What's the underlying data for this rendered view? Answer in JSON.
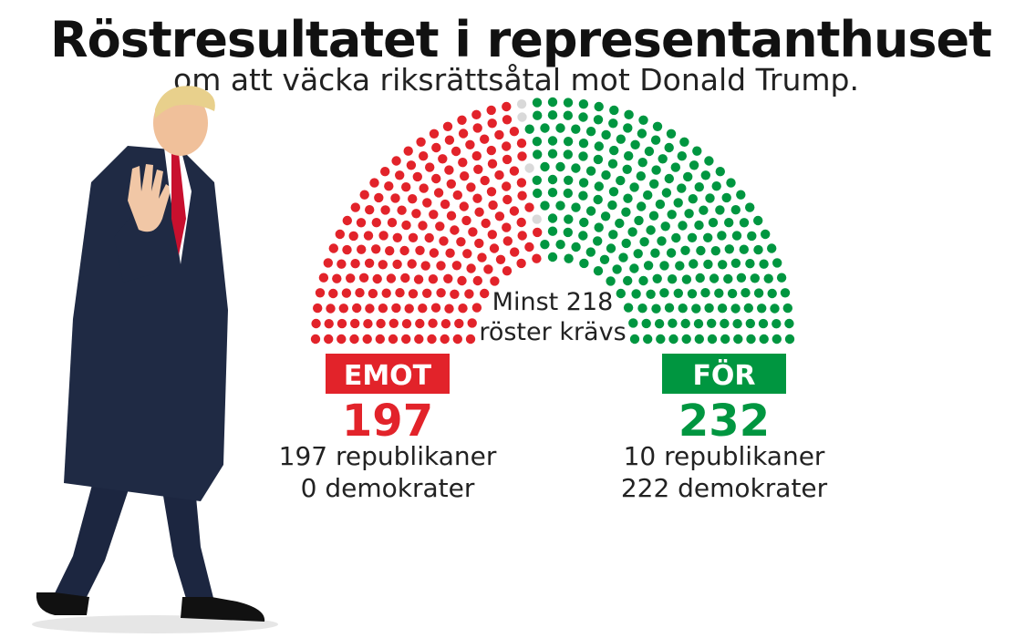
{
  "header": {
    "title": "Röstresultatet i representanthuset",
    "subtitle": "om att väcka riksrättsåtal mot Donald Trump."
  },
  "colors": {
    "against": "#e2232a",
    "for": "#009640",
    "absent": "#d9d9d9"
  },
  "photo": {
    "icon": "person-walking-figure"
  },
  "chart_data": {
    "type": "parliament",
    "title": "Röstresultatet i representanthuset",
    "subtitle": "om att väcka riksrättsåtal mot Donald Trump.",
    "total_seats": 433,
    "threshold_label": [
      "Minst 218",
      "röster krävs"
    ],
    "series": [
      {
        "name": "EMOT",
        "value": 197,
        "color": "#e2232a",
        "lines": [
          "197 republikaner",
          "0 demokrater"
        ]
      },
      {
        "name": "FÖR",
        "value": 232,
        "color": "#009640",
        "lines": [
          "10 republikaner",
          "222 demokrater"
        ]
      }
    ],
    "absent": 4
  }
}
